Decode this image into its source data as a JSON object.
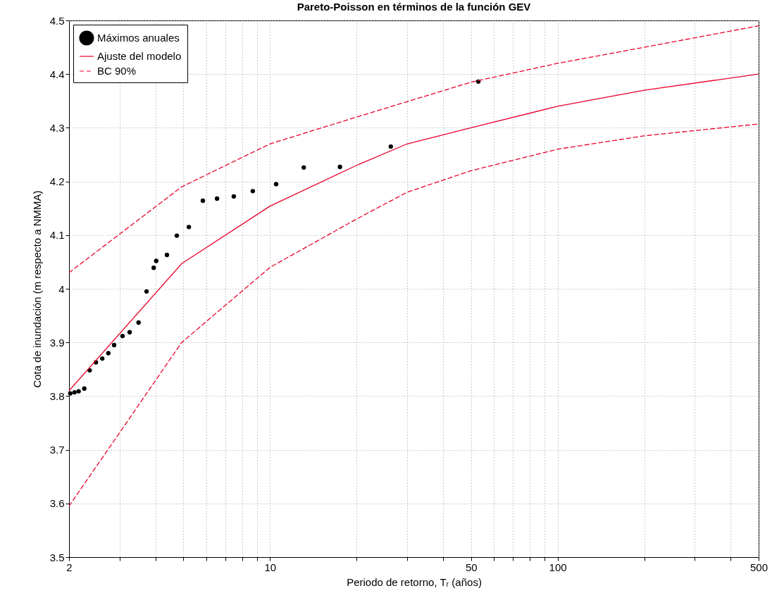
{
  "chart_data": {
    "type": "line",
    "title": "Pareto-Poisson en términos de la función GEV",
    "xlabel": "Periodo de retorno, Tᵣ (años)",
    "ylabel": "Cota de inundación (m respecto a NMMA)",
    "log": "x",
    "xlim": [
      2,
      500
    ],
    "ylim": [
      3.5,
      4.5
    ],
    "xticks": [
      2,
      {
        "value": 3,
        "label": null
      },
      {
        "value": 4,
        "label": null
      },
      {
        "value": 5,
        "label": null
      },
      {
        "value": 6,
        "label": null
      },
      {
        "value": 7,
        "label": null
      },
      {
        "value": 8,
        "label": null
      },
      {
        "value": 9,
        "label": null
      },
      10,
      {
        "value": 20,
        "label": null
      },
      {
        "value": 30,
        "label": null
      },
      {
        "value": 40,
        "label": null
      },
      50,
      {
        "value": 60,
        "label": null
      },
      {
        "value": 70,
        "label": null
      },
      {
        "value": 80,
        "label": null
      },
      {
        "value": 90,
        "label": null
      },
      100,
      {
        "value": 200,
        "label": null
      },
      {
        "value": 300,
        "label": null
      },
      {
        "value": 400,
        "label": null
      },
      500
    ],
    "yticks": [
      3.5,
      3.6,
      3.7,
      3.8,
      3.9,
      4,
      4.1,
      4.2,
      4.3,
      4.4,
      4.5
    ],
    "grid": true,
    "legend": "top left",
    "series": [
      {
        "name": "Máximos anuales",
        "type": "scatter",
        "marker": "circle",
        "color": "#000000",
        "x": [
          2.02,
          2.09,
          2.16,
          2.26,
          2.36,
          2.48,
          2.61,
          2.74,
          2.87,
          3.07,
          3.25,
          3.49,
          3.72,
          3.94,
          4.02,
          4.38,
          4.74,
          5.22,
          5.84,
          6.54,
          7.48,
          8.71,
          10.5,
          13.1,
          17.5,
          26.3,
          53.0
        ],
        "values": [
          3.805,
          3.807,
          3.809,
          3.814,
          3.848,
          3.863,
          3.87,
          3.88,
          3.895,
          3.912,
          3.919,
          3.937,
          3.995,
          4.039,
          4.052,
          4.063,
          4.099,
          4.115,
          4.164,
          4.168,
          4.172,
          4.182,
          4.195,
          4.226,
          4.227,
          4.265,
          4.386
        ]
      },
      {
        "name": "Ajuste del modelo",
        "type": "line",
        "line_style": "solid",
        "color": "#e8002a",
        "x": [
          2,
          4.93,
          10,
          20,
          30,
          50,
          100,
          200,
          500
        ],
        "values": [
          3.81,
          4.047,
          4.154,
          4.23,
          4.27,
          4.3,
          4.34,
          4.37,
          4.4
        ]
      },
      {
        "name": "BC 90%",
        "type": "line",
        "line_style": "dashed",
        "color": "#e8002a",
        "x": [
          2,
          4.93,
          10,
          20,
          50,
          100,
          200,
          500
        ],
        "values": [
          4.03,
          4.19,
          4.27,
          4.32,
          4.385,
          4.42,
          4.45,
          4.49
        ]
      },
      {
        "type": "line",
        "line_style": "dashed",
        "color": "#e8002a",
        "x": [
          2,
          4.93,
          10,
          20,
          30,
          50,
          100,
          200,
          500
        ],
        "values": [
          3.595,
          3.9,
          4.04,
          4.13,
          4.18,
          4.22,
          4.26,
          4.285,
          4.307
        ]
      }
    ]
  }
}
